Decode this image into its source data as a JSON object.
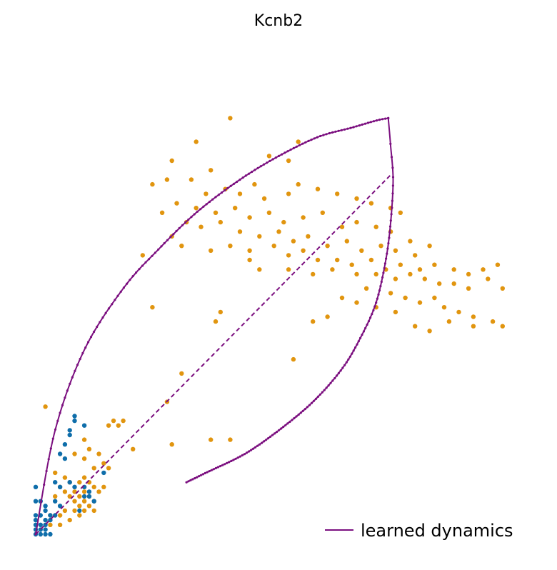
{
  "chart_data": {
    "type": "scatter",
    "title": "Kcnb2",
    "xlabel": "",
    "ylabel": "",
    "axes_visible": false,
    "grid": false,
    "legend_placement": "bottom-right",
    "xlim": [
      0,
      1
    ],
    "ylim": [
      0,
      1
    ],
    "colors": {
      "orange": "#e1950f",
      "blue": "#0f6eaa",
      "dynamics": "#7b0f7f"
    },
    "learned_dynamics": {
      "name": "learned dynamics",
      "upper_curve": [
        [
          0.0,
          0.0
        ],
        [
          0.04,
          0.22
        ],
        [
          0.1,
          0.39
        ],
        [
          0.18,
          0.52
        ],
        [
          0.25,
          0.6
        ],
        [
          0.33,
          0.68
        ],
        [
          0.42,
          0.75
        ],
        [
          0.5,
          0.8
        ],
        [
          0.58,
          0.84
        ],
        [
          0.65,
          0.86
        ],
        [
          0.7,
          0.875
        ],
        [
          0.725,
          0.88
        ]
      ],
      "lower_curve": [
        [
          0.725,
          0.88
        ],
        [
          0.73,
          0.82
        ],
        [
          0.735,
          0.75
        ],
        [
          0.73,
          0.66
        ],
        [
          0.72,
          0.58
        ],
        [
          0.7,
          0.49
        ],
        [
          0.67,
          0.42
        ],
        [
          0.63,
          0.35
        ],
        [
          0.57,
          0.28
        ],
        [
          0.5,
          0.22
        ],
        [
          0.43,
          0.17
        ],
        [
          0.35,
          0.13
        ],
        [
          0.31,
          0.11
        ]
      ],
      "dashed_line": [
        [
          0.0,
          0.0
        ],
        [
          0.73,
          0.76
        ]
      ]
    },
    "series": [
      {
        "color_key": "orange",
        "points": [
          [
            0.4,
            0.88
          ],
          [
            0.33,
            0.83
          ],
          [
            0.54,
            0.83
          ],
          [
            0.48,
            0.8
          ],
          [
            0.28,
            0.79
          ],
          [
            0.36,
            0.77
          ],
          [
            0.52,
            0.79
          ],
          [
            0.24,
            0.74
          ],
          [
            0.27,
            0.75
          ],
          [
            0.32,
            0.75
          ],
          [
            0.35,
            0.72
          ],
          [
            0.39,
            0.73
          ],
          [
            0.42,
            0.72
          ],
          [
            0.45,
            0.74
          ],
          [
            0.52,
            0.72
          ],
          [
            0.54,
            0.74
          ],
          [
            0.47,
            0.71
          ],
          [
            0.58,
            0.73
          ],
          [
            0.62,
            0.72
          ],
          [
            0.66,
            0.71
          ],
          [
            0.69,
            0.7
          ],
          [
            0.73,
            0.69
          ],
          [
            0.75,
            0.68
          ],
          [
            0.29,
            0.7
          ],
          [
            0.33,
            0.69
          ],
          [
            0.37,
            0.68
          ],
          [
            0.41,
            0.69
          ],
          [
            0.44,
            0.67
          ],
          [
            0.48,
            0.68
          ],
          [
            0.51,
            0.66
          ],
          [
            0.55,
            0.67
          ],
          [
            0.59,
            0.68
          ],
          [
            0.63,
            0.65
          ],
          [
            0.66,
            0.66
          ],
          [
            0.7,
            0.65
          ],
          [
            0.73,
            0.64
          ],
          [
            0.26,
            0.68
          ],
          [
            0.31,
            0.66
          ],
          [
            0.34,
            0.65
          ],
          [
            0.38,
            0.66
          ],
          [
            0.42,
            0.64
          ],
          [
            0.46,
            0.63
          ],
          [
            0.5,
            0.64
          ],
          [
            0.53,
            0.62
          ],
          [
            0.56,
            0.63
          ],
          [
            0.6,
            0.61
          ],
          [
            0.64,
            0.62
          ],
          [
            0.67,
            0.6
          ],
          [
            0.71,
            0.61
          ],
          [
            0.74,
            0.6
          ],
          [
            0.77,
            0.62
          ],
          [
            0.81,
            0.61
          ],
          [
            0.78,
            0.59
          ],
          [
            0.28,
            0.63
          ],
          [
            0.3,
            0.61
          ],
          [
            0.36,
            0.6
          ],
          [
            0.4,
            0.61
          ],
          [
            0.44,
            0.6
          ],
          [
            0.49,
            0.61
          ],
          [
            0.52,
            0.59
          ],
          [
            0.55,
            0.6
          ],
          [
            0.58,
            0.58
          ],
          [
            0.62,
            0.58
          ],
          [
            0.65,
            0.57
          ],
          [
            0.69,
            0.58
          ],
          [
            0.72,
            0.56
          ],
          [
            0.75,
            0.57
          ],
          [
            0.79,
            0.56
          ],
          [
            0.82,
            0.57
          ],
          [
            0.86,
            0.56
          ],
          [
            0.89,
            0.55
          ],
          [
            0.92,
            0.56
          ],
          [
            0.95,
            0.57
          ],
          [
            0.22,
            0.59
          ],
          [
            0.44,
            0.58
          ],
          [
            0.46,
            0.56
          ],
          [
            0.52,
            0.56
          ],
          [
            0.57,
            0.55
          ],
          [
            0.61,
            0.56
          ],
          [
            0.66,
            0.55
          ],
          [
            0.7,
            0.55
          ],
          [
            0.74,
            0.54
          ],
          [
            0.77,
            0.55
          ],
          [
            0.8,
            0.54
          ],
          [
            0.83,
            0.53
          ],
          [
            0.86,
            0.53
          ],
          [
            0.89,
            0.52
          ],
          [
            0.93,
            0.54
          ],
          [
            0.96,
            0.52
          ],
          [
            0.68,
            0.52
          ],
          [
            0.73,
            0.51
          ],
          [
            0.76,
            0.5
          ],
          [
            0.79,
            0.49
          ],
          [
            0.82,
            0.5
          ],
          [
            0.84,
            0.48
          ],
          [
            0.87,
            0.47
          ],
          [
            0.9,
            0.46
          ],
          [
            0.63,
            0.5
          ],
          [
            0.66,
            0.49
          ],
          [
            0.7,
            0.48
          ],
          [
            0.74,
            0.47
          ],
          [
            0.24,
            0.48
          ],
          [
            0.38,
            0.47
          ],
          [
            0.37,
            0.45
          ],
          [
            0.6,
            0.46
          ],
          [
            0.57,
            0.45
          ],
          [
            0.78,
            0.44
          ],
          [
            0.81,
            0.43
          ],
          [
            0.85,
            0.45
          ],
          [
            0.9,
            0.44
          ],
          [
            0.96,
            0.44
          ],
          [
            0.94,
            0.45
          ],
          [
            0.3,
            0.34
          ],
          [
            0.53,
            0.37
          ],
          [
            0.27,
            0.28
          ],
          [
            0.2,
            0.18
          ],
          [
            0.28,
            0.19
          ],
          [
            0.36,
            0.2
          ],
          [
            0.4,
            0.2
          ],
          [
            0.02,
            0.27
          ],
          [
            0.16,
            0.24
          ],
          [
            0.17,
            0.23
          ],
          [
            0.18,
            0.24
          ],
          [
            0.15,
            0.23
          ],
          [
            0.1,
            0.2
          ],
          [
            0.11,
            0.18
          ],
          [
            0.13,
            0.17
          ],
          [
            0.08,
            0.17
          ],
          [
            0.1,
            0.16
          ],
          [
            0.14,
            0.15
          ],
          [
            0.15,
            0.14
          ],
          [
            0.12,
            0.14
          ],
          [
            0.04,
            0.13
          ],
          [
            0.06,
            0.12
          ],
          [
            0.07,
            0.11
          ],
          [
            0.09,
            0.11
          ],
          [
            0.1,
            0.12
          ],
          [
            0.11,
            0.11
          ],
          [
            0.12,
            0.1
          ],
          [
            0.05,
            0.1
          ],
          [
            0.06,
            0.09
          ],
          [
            0.08,
            0.09
          ],
          [
            0.09,
            0.08
          ],
          [
            0.1,
            0.09
          ],
          [
            0.11,
            0.08
          ],
          [
            0.13,
            0.09
          ],
          [
            0.14,
            0.1
          ],
          [
            0.04,
            0.08
          ],
          [
            0.07,
            0.08
          ],
          [
            0.08,
            0.07
          ],
          [
            0.1,
            0.07
          ],
          [
            0.12,
            0.07
          ],
          [
            0.09,
            0.06
          ],
          [
            0.11,
            0.06
          ],
          [
            0.06,
            0.05
          ],
          [
            0.08,
            0.05
          ],
          [
            0.1,
            0.05
          ],
          [
            0.12,
            0.05
          ],
          [
            0.03,
            0.04
          ],
          [
            0.05,
            0.04
          ],
          [
            0.07,
            0.03
          ],
          [
            0.09,
            0.04
          ],
          [
            0.03,
            0.02
          ],
          [
            0.05,
            0.02
          ]
        ]
      },
      {
        "color_key": "blue",
        "points": [
          [
            0.08,
            0.25
          ],
          [
            0.08,
            0.24
          ],
          [
            0.1,
            0.23
          ],
          [
            0.07,
            0.22
          ],
          [
            0.07,
            0.21
          ],
          [
            0.06,
            0.19
          ],
          [
            0.05,
            0.17
          ],
          [
            0.06,
            0.16
          ],
          [
            0.14,
            0.13
          ],
          [
            0.0,
            0.1
          ],
          [
            0.04,
            0.11
          ],
          [
            0.07,
            0.11
          ],
          [
            0.05,
            0.1
          ],
          [
            0.08,
            0.1
          ],
          [
            0.1,
            0.1
          ],
          [
            0.11,
            0.09
          ],
          [
            0.1,
            0.08
          ],
          [
            0.11,
            0.08
          ],
          [
            0.12,
            0.07
          ],
          [
            0.0,
            0.07
          ],
          [
            0.01,
            0.07
          ],
          [
            0.02,
            0.06
          ],
          [
            0.04,
            0.07
          ],
          [
            0.05,
            0.06
          ],
          [
            0.09,
            0.05
          ],
          [
            0.02,
            0.05
          ],
          [
            0.03,
            0.04
          ],
          [
            0.04,
            0.04
          ],
          [
            0.02,
            0.03
          ],
          [
            0.03,
            0.03
          ],
          [
            0.01,
            0.02
          ],
          [
            0.02,
            0.02
          ],
          [
            0.0,
            0.02
          ],
          [
            0.01,
            0.01
          ],
          [
            0.0,
            0.01
          ],
          [
            0.0,
            0.0
          ],
          [
            0.01,
            0.0
          ],
          [
            0.02,
            0.0
          ],
          [
            0.03,
            0.0
          ],
          [
            0.0,
            0.03
          ],
          [
            0.0,
            0.04
          ],
          [
            0.01,
            0.04
          ],
          [
            0.02,
            0.01
          ]
        ]
      }
    ]
  }
}
